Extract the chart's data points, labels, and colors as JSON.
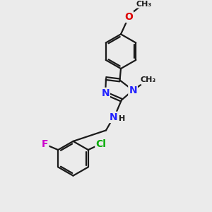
{
  "bg_color": "#ebebeb",
  "bond_color": "#1a1a1a",
  "bond_width": 1.6,
  "atom_colors": {
    "N": "#2222ff",
    "O": "#dd0000",
    "F": "#cc00cc",
    "Cl": "#00aa00",
    "C": "#1a1a1a",
    "H": "#1a1a1a"
  },
  "font_size_atom": 10,
  "font_size_label": 9,
  "font_size_small": 8
}
